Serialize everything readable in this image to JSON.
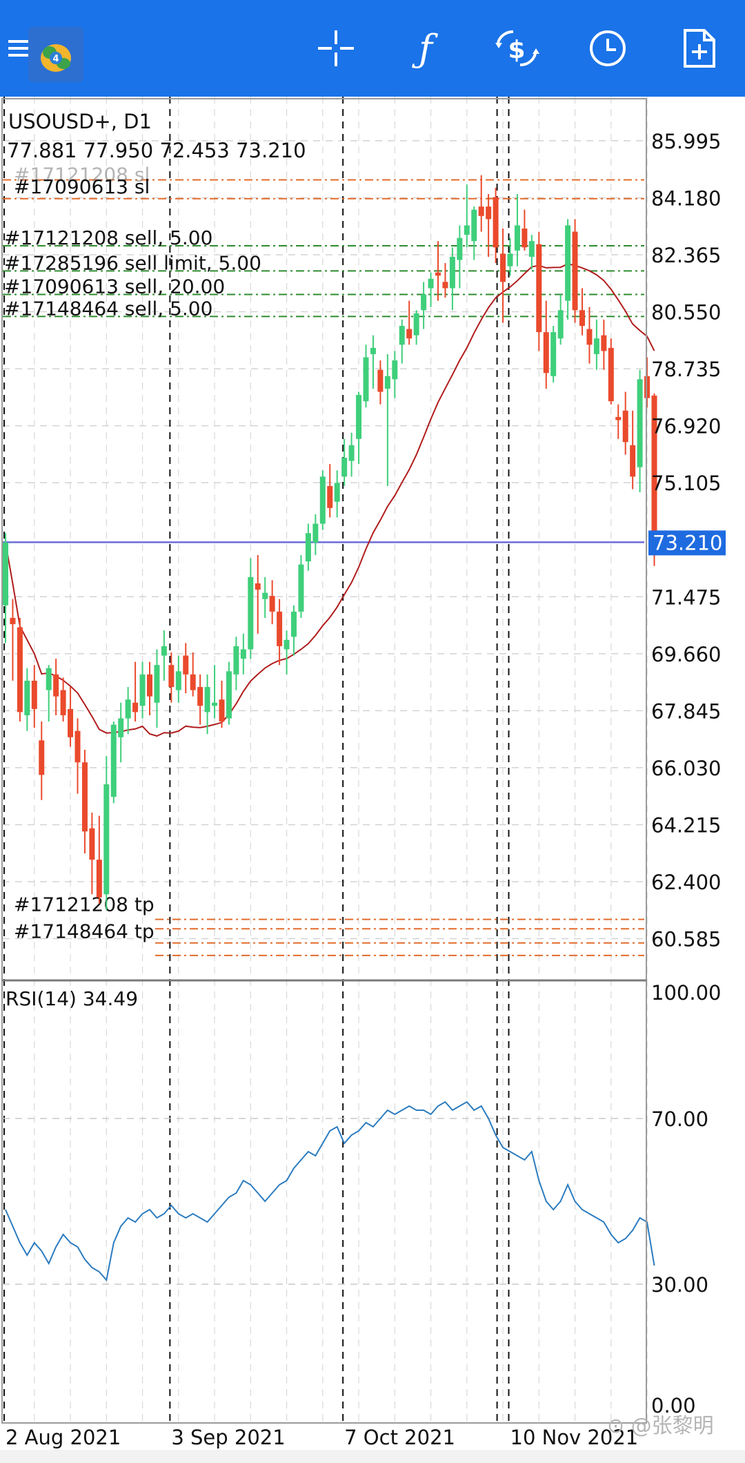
{
  "toolbar": {
    "menu_icon": "hamburger-menu-icon",
    "logo_icon": "metatrader-4-logo",
    "buttons": [
      {
        "name": "crosshair-icon"
      },
      {
        "name": "indicators-icon",
        "glyph": "ƒ"
      },
      {
        "name": "trade-icon"
      },
      {
        "name": "timeframe-clock-icon"
      },
      {
        "name": "new-order-document-icon"
      }
    ],
    "background": "#1a73e8"
  },
  "chart_data": [
    {
      "type": "candlestick",
      "symbol_line": "USOUSD+, D1",
      "ohlc_line": "77.881 77.950 72.453 73.210",
      "price_label": "73.210",
      "price": 73.21,
      "ylim": [
        59.3,
        87.4
      ],
      "y_ticks": [
        "85.995",
        "84.180",
        "82.365",
        "80.550",
        "78.735",
        "76.920",
        "75.105",
        "73.210",
        "71.475",
        "69.660",
        "67.845",
        "66.030",
        "64.215",
        "62.400",
        "60.585"
      ],
      "x_ticks": [
        "2 Aug 2021",
        "3 Sep 2021",
        "7 Oct 2021",
        "10 Nov 2021"
      ],
      "x_tick_index": [
        0,
        23,
        47,
        70
      ],
      "grid": true,
      "order_lines": [
        {
          "price": 84.75,
          "color": "#e26b2b",
          "label": "#17121208 sl",
          "ghost": true
        },
        {
          "price": 84.15,
          "color": "#e26b2b",
          "label": "#17090613 sl"
        },
        {
          "price": 82.65,
          "color": "#2e8b2e",
          "label": "#17121208 sell, 5.00"
        },
        {
          "price": 81.85,
          "color": "#2e8b2e",
          "label": "#17285196 sell limit, 5.00"
        },
        {
          "price": 81.1,
          "color": "#2e8b2e",
          "label": "#17090613 sell, 20.00"
        },
        {
          "price": 80.4,
          "color": "#2e8b2e",
          "label": "#17148464 sell, 5.00"
        },
        {
          "price": 61.2,
          "color": "#e26b2b",
          "label": "#17121208 tp"
        },
        {
          "price": 60.9,
          "color": "#e26b2b",
          "label": ""
        },
        {
          "price": 60.45,
          "color": "#e26b2b",
          "label": "#17148464 tp"
        },
        {
          "price": 60.05,
          "color": "#e26b2b",
          "label": ""
        }
      ],
      "colors": {
        "bull": "#3fcf7b",
        "bear": "#ea4a2c",
        "ma": "#b01c1c",
        "price_line": "#6b6bd6",
        "price_label_bg": "#1e6be0"
      },
      "ohlc": [
        [
          71.2,
          73.5,
          70.0,
          73.2
        ],
        [
          70.8,
          71.4,
          68.8,
          70.6
        ],
        [
          70.5,
          70.8,
          67.5,
          67.8
        ],
        [
          67.7,
          69.2,
          67.2,
          68.8
        ],
        [
          68.8,
          69.3,
          67.3,
          67.9
        ],
        [
          66.9,
          67.5,
          65.0,
          65.8
        ],
        [
          68.5,
          69.3,
          67.5,
          69.2
        ],
        [
          69.0,
          69.5,
          67.7,
          68.3
        ],
        [
          68.5,
          68.9,
          67.5,
          67.7
        ],
        [
          67.9,
          68.6,
          66.7,
          67.0
        ],
        [
          67.2,
          67.6,
          65.2,
          66.2
        ],
        [
          66.2,
          66.6,
          63.3,
          64.0
        ],
        [
          64.1,
          64.6,
          62.0,
          63.1
        ],
        [
          63.1,
          64.5,
          61.7,
          61.9
        ],
        [
          62.0,
          66.4,
          61.5,
          65.5
        ],
        [
          65.1,
          67.5,
          64.9,
          67.4
        ],
        [
          67.0,
          68.1,
          66.2,
          67.6
        ],
        [
          67.6,
          68.6,
          67.1,
          68.2
        ],
        [
          68.1,
          69.4,
          67.5,
          67.8
        ],
        [
          68.0,
          69.4,
          67.6,
          69.0
        ],
        [
          69.0,
          69.4,
          67.7,
          68.3
        ],
        [
          68.1,
          69.8,
          67.3,
          69.3
        ],
        [
          69.6,
          70.4,
          68.8,
          69.9
        ],
        [
          69.3,
          69.7,
          68.1,
          68.6
        ],
        [
          68.5,
          69.6,
          68.1,
          69.1
        ],
        [
          69.6,
          70.0,
          68.4,
          69.0
        ],
        [
          69.0,
          69.7,
          68.3,
          68.5
        ],
        [
          68.6,
          69.0,
          67.4,
          68.0
        ],
        [
          67.8,
          69.0,
          67.1,
          68.6
        ],
        [
          68.0,
          69.3,
          67.6,
          68.1
        ],
        [
          68.2,
          68.8,
          67.3,
          67.5
        ],
        [
          67.6,
          69.4,
          67.4,
          69.1
        ],
        [
          69.0,
          70.2,
          68.5,
          69.9
        ],
        [
          69.5,
          70.3,
          69.0,
          69.8
        ],
        [
          69.8,
          72.7,
          69.5,
          72.1
        ],
        [
          71.9,
          72.8,
          70.3,
          71.7
        ],
        [
          71.4,
          72.1,
          70.8,
          71.6
        ],
        [
          71.5,
          72.0,
          70.6,
          71.0
        ],
        [
          71.0,
          71.4,
          69.3,
          69.9
        ],
        [
          69.8,
          70.4,
          69.0,
          70.1
        ],
        [
          70.2,
          71.2,
          69.6,
          71.0
        ],
        [
          71.0,
          72.8,
          70.8,
          72.5
        ],
        [
          72.6,
          73.8,
          72.3,
          73.5
        ],
        [
          73.2,
          74.1,
          72.8,
          73.8
        ],
        [
          73.8,
          75.5,
          73.6,
          75.3
        ],
        [
          75.0,
          75.7,
          74.0,
          74.3
        ],
        [
          74.5,
          75.5,
          74.0,
          75.1
        ],
        [
          75.3,
          76.5,
          75.0,
          75.9
        ],
        [
          75.8,
          76.7,
          75.3,
          76.3
        ],
        [
          76.5,
          78.0,
          75.7,
          77.9
        ],
        [
          77.7,
          79.5,
          77.5,
          79.1
        ],
        [
          79.2,
          79.8,
          78.1,
          79.4
        ],
        [
          78.7,
          79.0,
          77.6,
          78.0
        ],
        [
          78.1,
          79.2,
          75.0,
          78.5
        ],
        [
          78.4,
          79.3,
          77.8,
          79.0
        ],
        [
          79.5,
          80.3,
          78.9,
          80.1
        ],
        [
          80.0,
          80.9,
          79.5,
          79.7
        ],
        [
          79.8,
          80.6,
          79.5,
          80.5
        ],
        [
          80.6,
          81.5,
          80.0,
          81.1
        ],
        [
          81.3,
          81.8,
          80.7,
          81.6
        ],
        [
          81.8,
          82.8,
          80.9,
          81.7
        ],
        [
          81.5,
          82.1,
          81.0,
          81.3
        ],
        [
          81.3,
          82.6,
          80.6,
          82.3
        ],
        [
          82.2,
          83.3,
          81.3,
          82.9
        ],
        [
          83.0,
          84.6,
          82.6,
          83.3
        ],
        [
          82.8,
          83.9,
          82.2,
          83.8
        ],
        [
          83.9,
          84.9,
          83.1,
          83.6
        ],
        [
          83.9,
          84.3,
          82.3,
          83.5
        ],
        [
          84.2,
          84.5,
          82.1,
          82.6
        ],
        [
          82.4,
          83.2,
          80.2,
          81.5
        ],
        [
          82.0,
          82.9,
          81.7,
          82.4
        ],
        [
          82.5,
          84.3,
          82.0,
          83.3
        ],
        [
          83.2,
          83.8,
          82.5,
          82.6
        ],
        [
          82.3,
          83.0,
          81.9,
          82.8
        ],
        [
          82.7,
          83.1,
          79.3,
          79.9
        ],
        [
          79.9,
          80.9,
          78.1,
          78.6
        ],
        [
          78.5,
          80.1,
          78.3,
          79.9
        ],
        [
          79.7,
          81.1,
          79.5,
          80.6
        ],
        [
          80.9,
          83.5,
          80.3,
          83.3
        ],
        [
          83.1,
          83.5,
          80.2,
          80.6
        ],
        [
          80.6,
          81.3,
          79.8,
          80.1
        ],
        [
          80.0,
          80.7,
          78.9,
          79.5
        ],
        [
          79.2,
          80.3,
          78.7,
          79.7
        ],
        [
          79.8,
          80.3,
          78.7,
          79.3
        ],
        [
          79.4,
          79.7,
          77.6,
          77.7
        ],
        [
          77.2,
          77.6,
          76.5,
          77.1
        ],
        [
          77.4,
          78.0,
          76.0,
          76.4
        ],
        [
          76.3,
          77.4,
          74.9,
          75.3
        ],
        [
          75.6,
          78.7,
          74.8,
          78.4
        ],
        [
          78.5,
          79.1,
          77.5,
          77.8
        ],
        [
          77.881,
          77.95,
          72.453,
          73.21
        ]
      ],
      "ma_period": 20
    },
    {
      "type": "line",
      "indicator_label": "RSI(14) 34.49",
      "ylim": [
        0,
        100
      ],
      "y_ticks": [
        "100.00",
        "70.00",
        "30.00",
        "0.00"
      ],
      "color": "#2b7bbf",
      "values": [
        48,
        44,
        40,
        37,
        40,
        38,
        35,
        39,
        42,
        40,
        39,
        36,
        34,
        33,
        31,
        40,
        44,
        46,
        45,
        47,
        48,
        46,
        47,
        49,
        47,
        46,
        47,
        46,
        45,
        47,
        49,
        51,
        52,
        55,
        54,
        52,
        50,
        52,
        54,
        55,
        58,
        60,
        62,
        61,
        64,
        67,
        68,
        64,
        66,
        67,
        69,
        68,
        70,
        72,
        71,
        72,
        73,
        72,
        72,
        71,
        73,
        74,
        72,
        73,
        74,
        72,
        73,
        70,
        66,
        63,
        62,
        61,
        60,
        62,
        55,
        50,
        48,
        50,
        54,
        50,
        48,
        47,
        46,
        45,
        42,
        40,
        41,
        43,
        46,
        45,
        34.49
      ]
    }
  ]
}
